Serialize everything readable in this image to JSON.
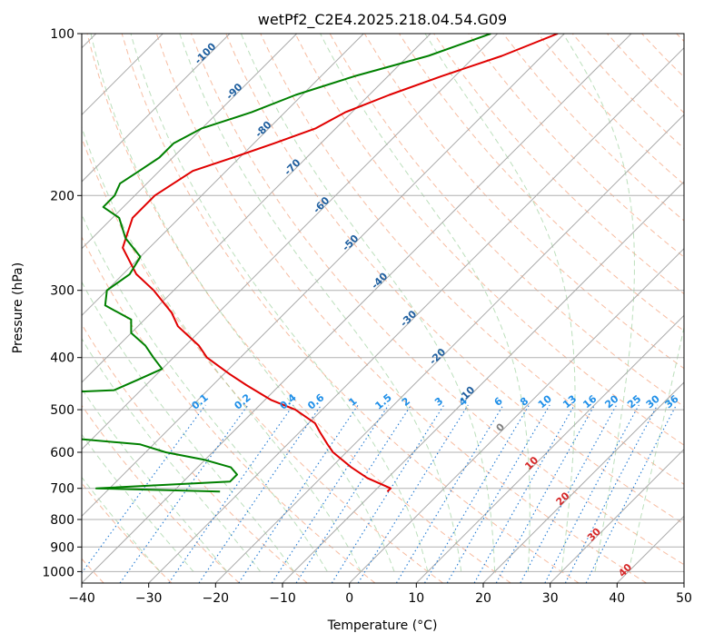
{
  "chart_data": {
    "type": "line",
    "title": "wetPf2_C2E4.2025.218.04.54.G09",
    "xlabel": "Temperature (°C)",
    "ylabel": "Pressure (hPa)",
    "xlim": [
      -40,
      50
    ],
    "ylim": [
      1050,
      100
    ],
    "y_scale": "log",
    "grid": true,
    "x_ticks": [
      "−40",
      "−30",
      "−20",
      "−10",
      "0",
      "10",
      "20",
      "30",
      "40",
      "50"
    ],
    "y_ticks": [
      "100",
      "200",
      "300",
      "400",
      "500",
      "600",
      "700",
      "800",
      "900",
      "1000"
    ],
    "x_tick_values": [
      -40,
      -30,
      -20,
      -10,
      0,
      10,
      20,
      30,
      40,
      50
    ],
    "y_tick_values": [
      100,
      200,
      300,
      400,
      500,
      600,
      700,
      800,
      900,
      1000
    ],
    "isotherm_labels": [
      "-100",
      "-90",
      "-80",
      "-70",
      "-60",
      "-50",
      "-40",
      "-30",
      "-20",
      "-10"
    ],
    "isotherm_label_values": [
      -100,
      -90,
      -80,
      -70,
      -60,
      -50,
      -40,
      -30,
      -20,
      -10
    ],
    "mixing_ratio_labels": [
      "0.1",
      "0.2",
      "0.4",
      "0.6",
      "1",
      "1.5",
      "2",
      "3",
      "4",
      "6",
      "8",
      "10",
      "13",
      "16",
      "20",
      "25",
      "30",
      "36"
    ],
    "mixing_ratio_values": [
      0.1,
      0.2,
      0.4,
      0.6,
      1,
      1.5,
      2,
      3,
      4,
      6,
      8,
      10,
      13,
      16,
      20,
      25,
      30,
      36
    ],
    "isotherm_labels_low": [
      "0",
      "10",
      "20",
      "30",
      "40"
    ],
    "isotherm_labels_low_values": [
      0,
      10,
      20,
      30,
      40
    ],
    "series": [
      {
        "name": "",
        "color": "#e00000",
        "pressure": [
          100,
          110,
          120,
          130,
          140,
          150,
          160,
          170,
          180,
          200,
          220,
          250,
          280,
          300,
          330,
          350,
          380,
          400,
          430,
          450,
          480,
          500,
          530,
          550,
          580,
          600,
          640,
          670,
          700,
          710
        ],
        "temperature": [
          -51,
          -56,
          -62,
          -67,
          -71,
          -73,
          -77,
          -81,
          -85,
          -87,
          -87,
          -84,
          -78,
          -73,
          -67,
          -64,
          -58,
          -55,
          -49,
          -45,
          -39,
          -34,
          -29,
          -27,
          -24,
          -22,
          -17,
          -13,
          -8,
          -8
        ]
      },
      {
        "name": "",
        "color": "#008000",
        "pressure": [
          100,
          110,
          120,
          130,
          140,
          150,
          160,
          170,
          180,
          190,
          200,
          210,
          220,
          240,
          260,
          280,
          300,
          320,
          340,
          360,
          380,
          400,
          420,
          440,
          460,
          480,
          490,
          500,
          510,
          520,
          530,
          540,
          560,
          580,
          600,
          620,
          640,
          660,
          680,
          700,
          710
        ],
        "temperature": [
          -61,
          -67,
          -75,
          -81,
          -85,
          -90,
          -92,
          -92,
          -93,
          -94,
          -93,
          -93,
          -89,
          -85,
          -80,
          -79,
          -80,
          -78,
          -72,
          -70,
          -66,
          -63,
          -60,
          -62,
          -64,
          -98,
          -102,
          -99,
          -90,
          -108,
          -110,
          -96,
          -67,
          -52,
          -47,
          -40,
          -35,
          -33,
          -33,
          -52,
          -33
        ]
      }
    ]
  }
}
